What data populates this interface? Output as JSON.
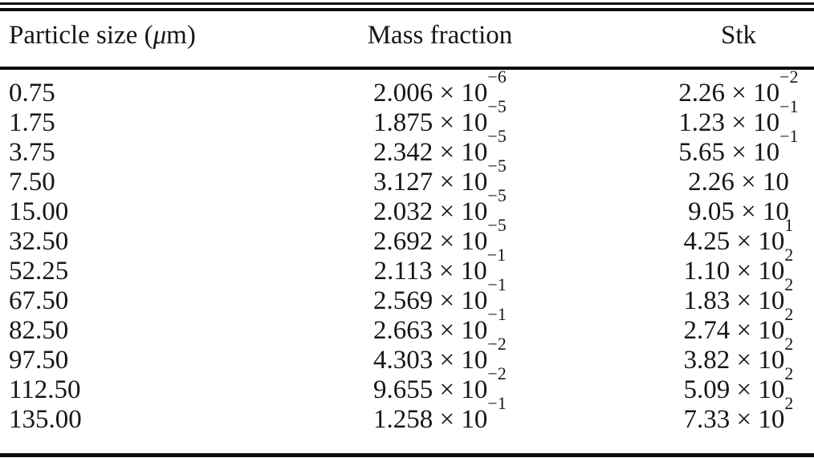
{
  "table": {
    "columns": [
      {
        "label_prefix": "Particle size (",
        "label_mu": "μ",
        "label_suffix": "m)"
      },
      {
        "label": "Mass fraction"
      },
      {
        "label": "Stk"
      }
    ],
    "multiplication_sign": "×",
    "base": "10",
    "rows": [
      {
        "size": "0.75",
        "mass": {
          "mantissa": "2.006",
          "exponent": "−6"
        },
        "stk": {
          "mantissa": "2.26",
          "exponent": "−2"
        }
      },
      {
        "size": "1.75",
        "mass": {
          "mantissa": "1.875",
          "exponent": "−5"
        },
        "stk": {
          "mantissa": "1.23",
          "exponent": "−1"
        }
      },
      {
        "size": "3.75",
        "mass": {
          "mantissa": "2.342",
          "exponent": "−5"
        },
        "stk": {
          "mantissa": "5.65",
          "exponent": "−1"
        }
      },
      {
        "size": "7.50",
        "mass": {
          "mantissa": "3.127",
          "exponent": "−5"
        },
        "stk": {
          "mantissa": "2.26",
          "exponent": ""
        }
      },
      {
        "size": "15.00",
        "mass": {
          "mantissa": "2.032",
          "exponent": "−5"
        },
        "stk": {
          "mantissa": "9.05",
          "exponent": ""
        }
      },
      {
        "size": "32.50",
        "mass": {
          "mantissa": "2.692",
          "exponent": "−5"
        },
        "stk": {
          "mantissa": "4.25",
          "exponent": "1"
        }
      },
      {
        "size": "52.25",
        "mass": {
          "mantissa": "2.113",
          "exponent": "−1"
        },
        "stk": {
          "mantissa": "1.10",
          "exponent": "2"
        }
      },
      {
        "size": "67.50",
        "mass": {
          "mantissa": "2.569",
          "exponent": "−1"
        },
        "stk": {
          "mantissa": "1.83",
          "exponent": "2"
        }
      },
      {
        "size": "82.50",
        "mass": {
          "mantissa": "2.663",
          "exponent": "−1"
        },
        "stk": {
          "mantissa": "2.74",
          "exponent": "2"
        }
      },
      {
        "size": "97.50",
        "mass": {
          "mantissa": "4.303",
          "exponent": "−2"
        },
        "stk": {
          "mantissa": "3.82",
          "exponent": "2"
        }
      },
      {
        "size": "112.50",
        "mass": {
          "mantissa": "9.655",
          "exponent": "−2"
        },
        "stk": {
          "mantissa": "5.09",
          "exponent": "2"
        }
      },
      {
        "size": "135.00",
        "mass": {
          "mantissa": "1.258",
          "exponent": "−1"
        },
        "stk": {
          "mantissa": "7.33",
          "exponent": "2"
        }
      }
    ],
    "rule_color": "#0d0d0d",
    "text_color": "#161616"
  }
}
